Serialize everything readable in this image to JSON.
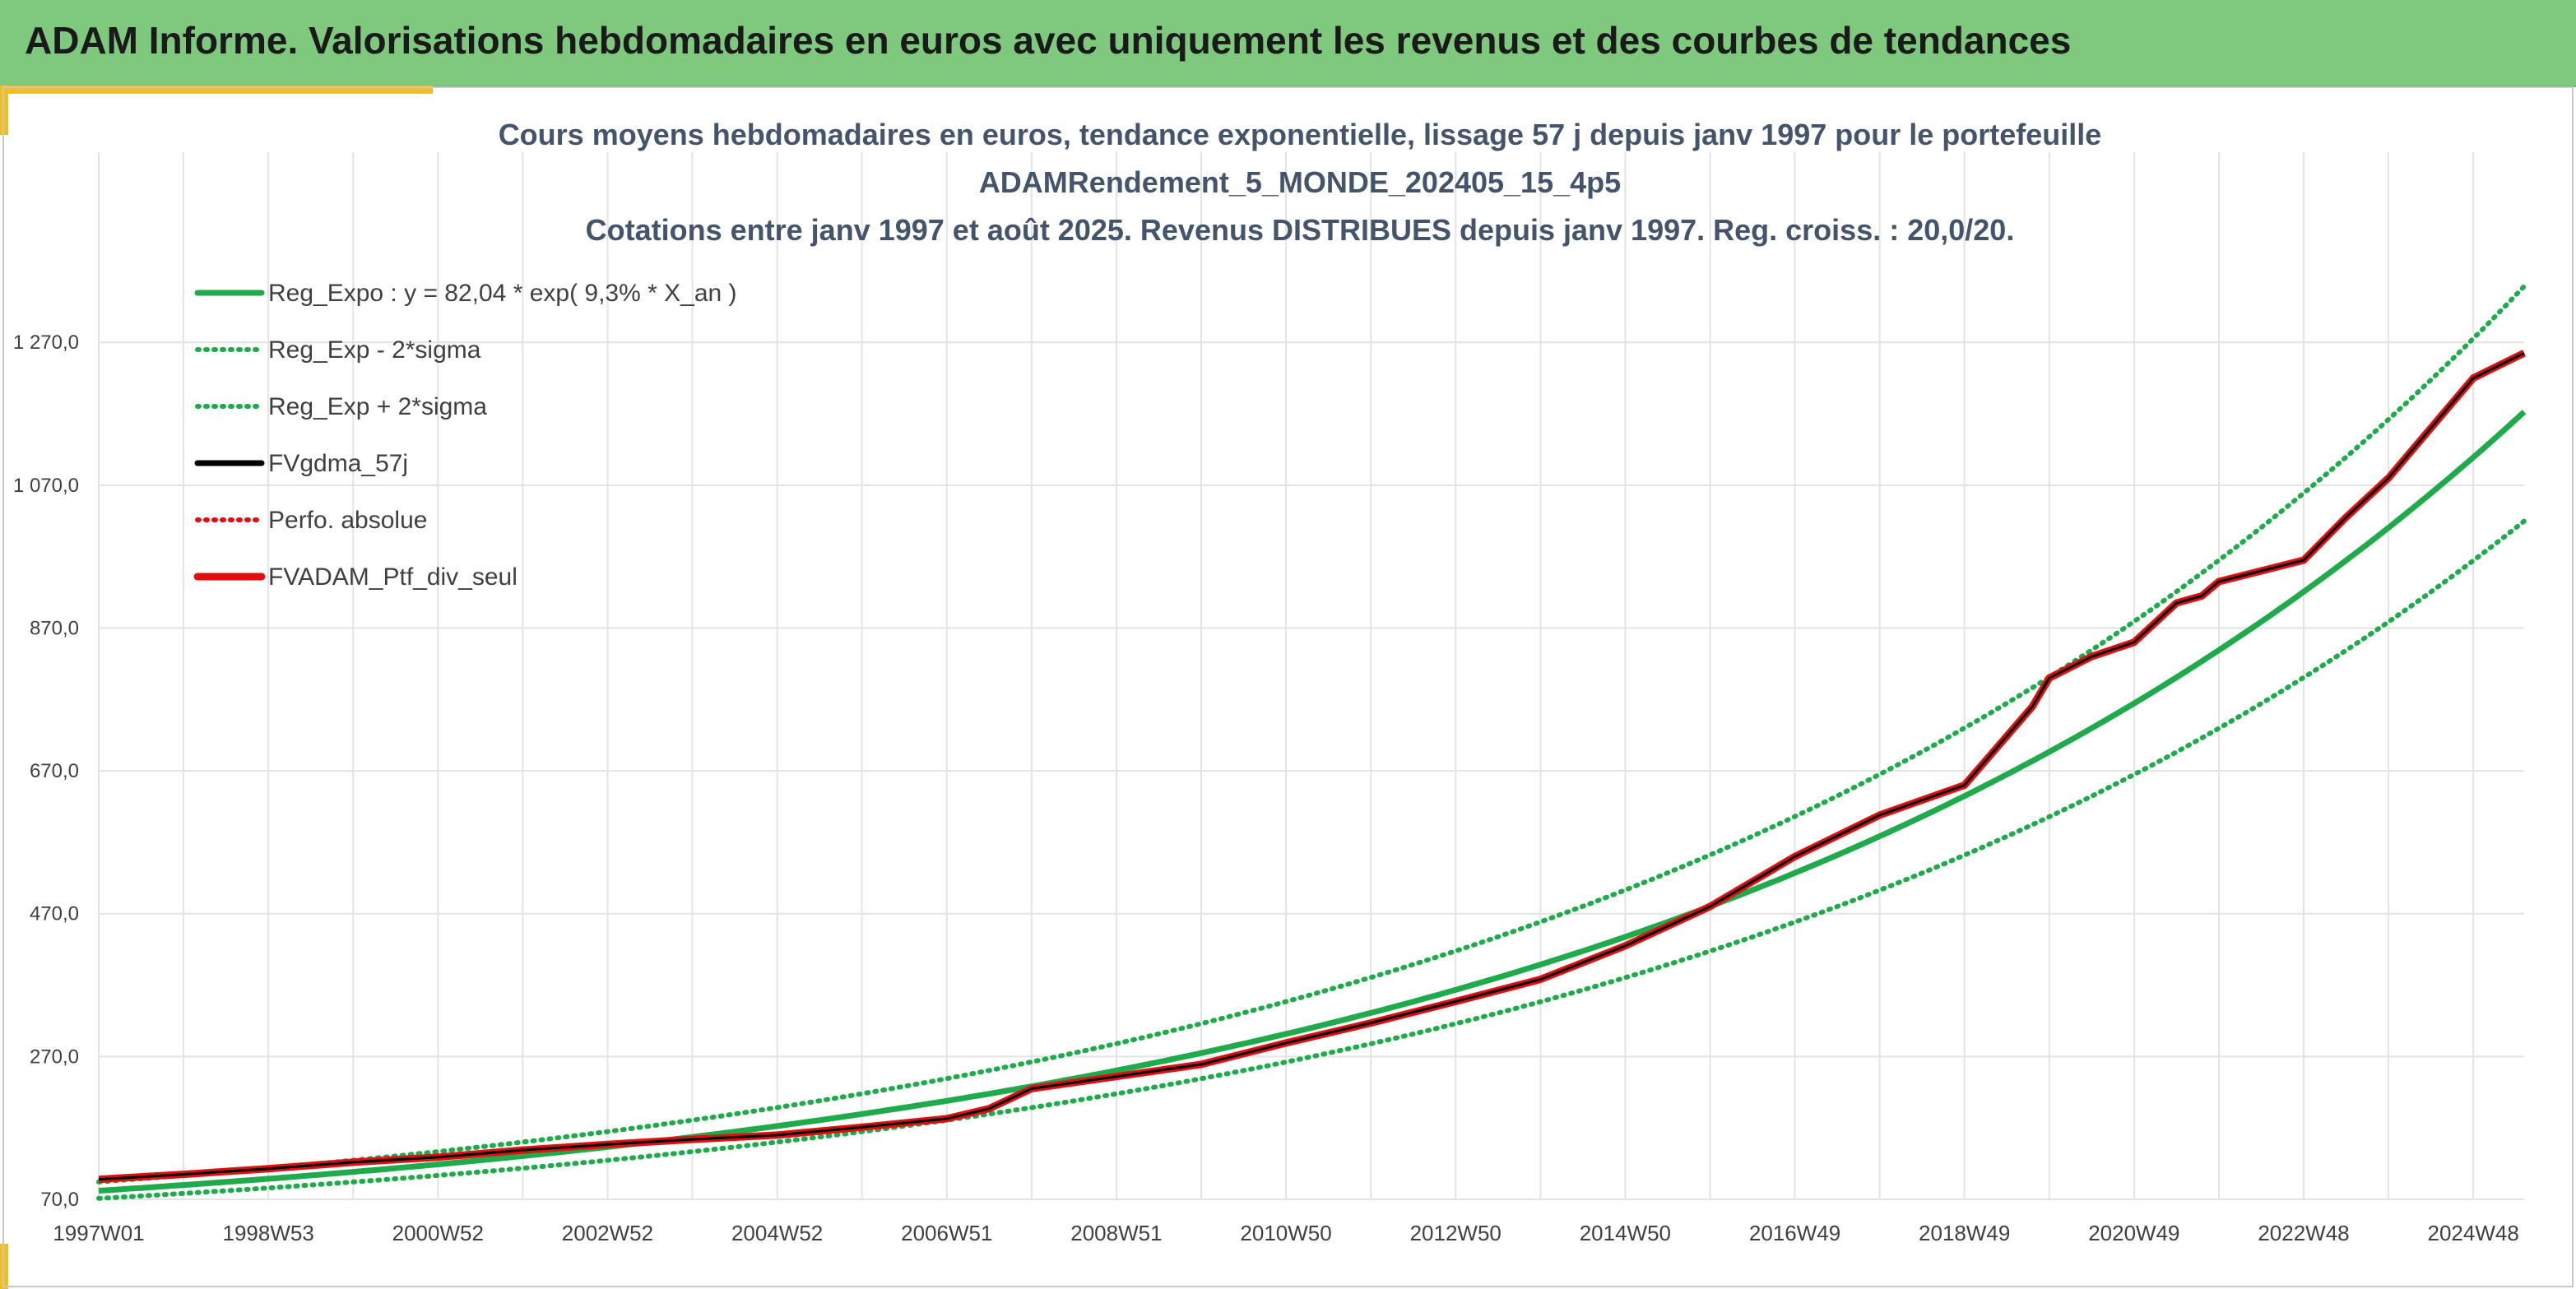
{
  "header": {
    "title": "ADAM Informe. Valorisations hebdomadaires en euros avec uniquement les revenus et des courbes de tendances"
  },
  "colors": {
    "header_bg": "#7fc97f",
    "accent": "#f0c020",
    "trend": "#1faa4b",
    "sigma": "#1faa4b",
    "fv57": "#000000",
    "perf": "#e01010",
    "fvadam": "#e01010"
  },
  "chart_data": {
    "type": "line",
    "title_lines": [
      "Cours moyens hebdomadaires en euros, tendance exponentielle, lissage 57 j depuis janv 1997 pour le portefeuille",
      "ADAMRendement_5_MONDE_202405_15_4p5",
      "Cotations entre janv 1997 et août 2025. Revenus DISTRIBUES depuis janv 1997. Reg. croiss. : 20,0/20."
    ],
    "xlabel": "",
    "ylabel": "",
    "x_ticks": [
      "1997W01",
      "1998W53",
      "2000W52",
      "2002W52",
      "2004W52",
      "2006W51",
      "2008W51",
      "2010W50",
      "2012W50",
      "2014W50",
      "2016W49",
      "2018W49",
      "2020W49",
      "2022W48",
      "2024W48"
    ],
    "x_range_years": [
      1997.0,
      2025.6
    ],
    "ylim": [
      70,
      1390
    ],
    "y_ticks": [
      "70,0",
      "270,0",
      "470,0",
      "670,0",
      "870,0",
      "1 070,0",
      "1 270,0"
    ],
    "y_tick_values": [
      70,
      270,
      470,
      670,
      870,
      1070,
      1270
    ],
    "grid": true,
    "legend_position": "top-left",
    "regression": {
      "a": 82.04,
      "rate": 0.093,
      "sigma_factor": 1.15
    },
    "series": [
      {
        "name": "Reg_Expo : y = 82,04 * exp( 9,3% *  X_an )",
        "style": "solid",
        "color": "#1faa4b"
      },
      {
        "name": "Reg_Exp - 2*sigma",
        "style": "dotted",
        "color": "#1faa4b"
      },
      {
        "name": "Reg_Exp + 2*sigma",
        "style": "dotted",
        "color": "#1faa4b"
      },
      {
        "name": "FVgdma_57j",
        "style": "solid",
        "color": "#000000",
        "x": [
          1997.0,
          1998.0,
          1999.0,
          2000.0,
          2001.0,
          2002.0,
          2003.0,
          2004.0,
          2005.0,
          2006.0,
          2007.0,
          2007.5,
          2008.0,
          2009.0,
          2010.0,
          2011.0,
          2012.0,
          2013.0,
          2014.0,
          2015.0,
          2016.0,
          2017.0,
          2018.0,
          2019.0,
          2019.8,
          2020.0,
          2020.5,
          2021.0,
          2021.5,
          2021.8,
          2022.0,
          2022.5,
          2023.0,
          2023.5,
          2024.0,
          2024.5,
          2025.0,
          2025.6
        ],
        "y": [
          98,
          105,
          113,
          122,
          129,
          139,
          147,
          154,
          160,
          171,
          183,
          197,
          225,
          242,
          259,
          289,
          317,
          347,
          378,
          425,
          480,
          550,
          608,
          650,
          760,
          800,
          830,
          850,
          905,
          915,
          935,
          950,
          965,
          1025,
          1080,
          1150,
          1220,
          1255
        ]
      },
      {
        "name": "Perfo. absolue",
        "style": "dotted",
        "color": "#e01010",
        "x": [
          1997.0,
          1998.0,
          1999.0,
          2000.0,
          2001.0,
          2002.0,
          2003.0,
          2004.0,
          2005.0,
          2006.0,
          2007.0,
          2007.5,
          2008.0,
          2009.0,
          2010.0,
          2011.0,
          2012.0,
          2013.0,
          2014.0,
          2015.0,
          2016.0,
          2017.0,
          2018.0,
          2019.0,
          2019.8,
          2020.0,
          2020.5,
          2021.0,
          2021.5,
          2021.8,
          2022.0,
          2022.5,
          2023.0,
          2023.5,
          2024.0,
          2024.5,
          2025.0,
          2025.6
        ],
        "y": [
          98,
          105,
          113,
          122,
          129,
          139,
          147,
          154,
          160,
          171,
          183,
          197,
          225,
          242,
          259,
          289,
          317,
          347,
          378,
          425,
          480,
          550,
          608,
          650,
          760,
          800,
          830,
          850,
          905,
          915,
          935,
          950,
          965,
          1025,
          1080,
          1150,
          1220,
          1255
        ]
      },
      {
        "name": "FVADAM_Ptf_div_seul",
        "style": "solid",
        "color": "#e01010",
        "x": [
          1997.0,
          1998.0,
          1999.0,
          2000.0,
          2001.0,
          2002.0,
          2003.0,
          2004.0,
          2005.0,
          2006.0,
          2007.0,
          2007.5,
          2008.0,
          2009.0,
          2010.0,
          2011.0,
          2012.0,
          2013.0,
          2014.0,
          2015.0,
          2016.0,
          2017.0,
          2018.0,
          2019.0,
          2019.8,
          2020.0,
          2020.5,
          2021.0,
          2021.5,
          2021.8,
          2022.0,
          2022.5,
          2023.0,
          2023.5,
          2024.0,
          2024.5,
          2025.0,
          2025.6
        ],
        "y": [
          98,
          105,
          113,
          122,
          129,
          139,
          147,
          154,
          160,
          171,
          183,
          197,
          225,
          242,
          259,
          289,
          317,
          347,
          378,
          425,
          480,
          550,
          608,
          650,
          760,
          800,
          830,
          850,
          905,
          915,
          935,
          950,
          965,
          1025,
          1080,
          1150,
          1220,
          1255
        ]
      }
    ]
  }
}
